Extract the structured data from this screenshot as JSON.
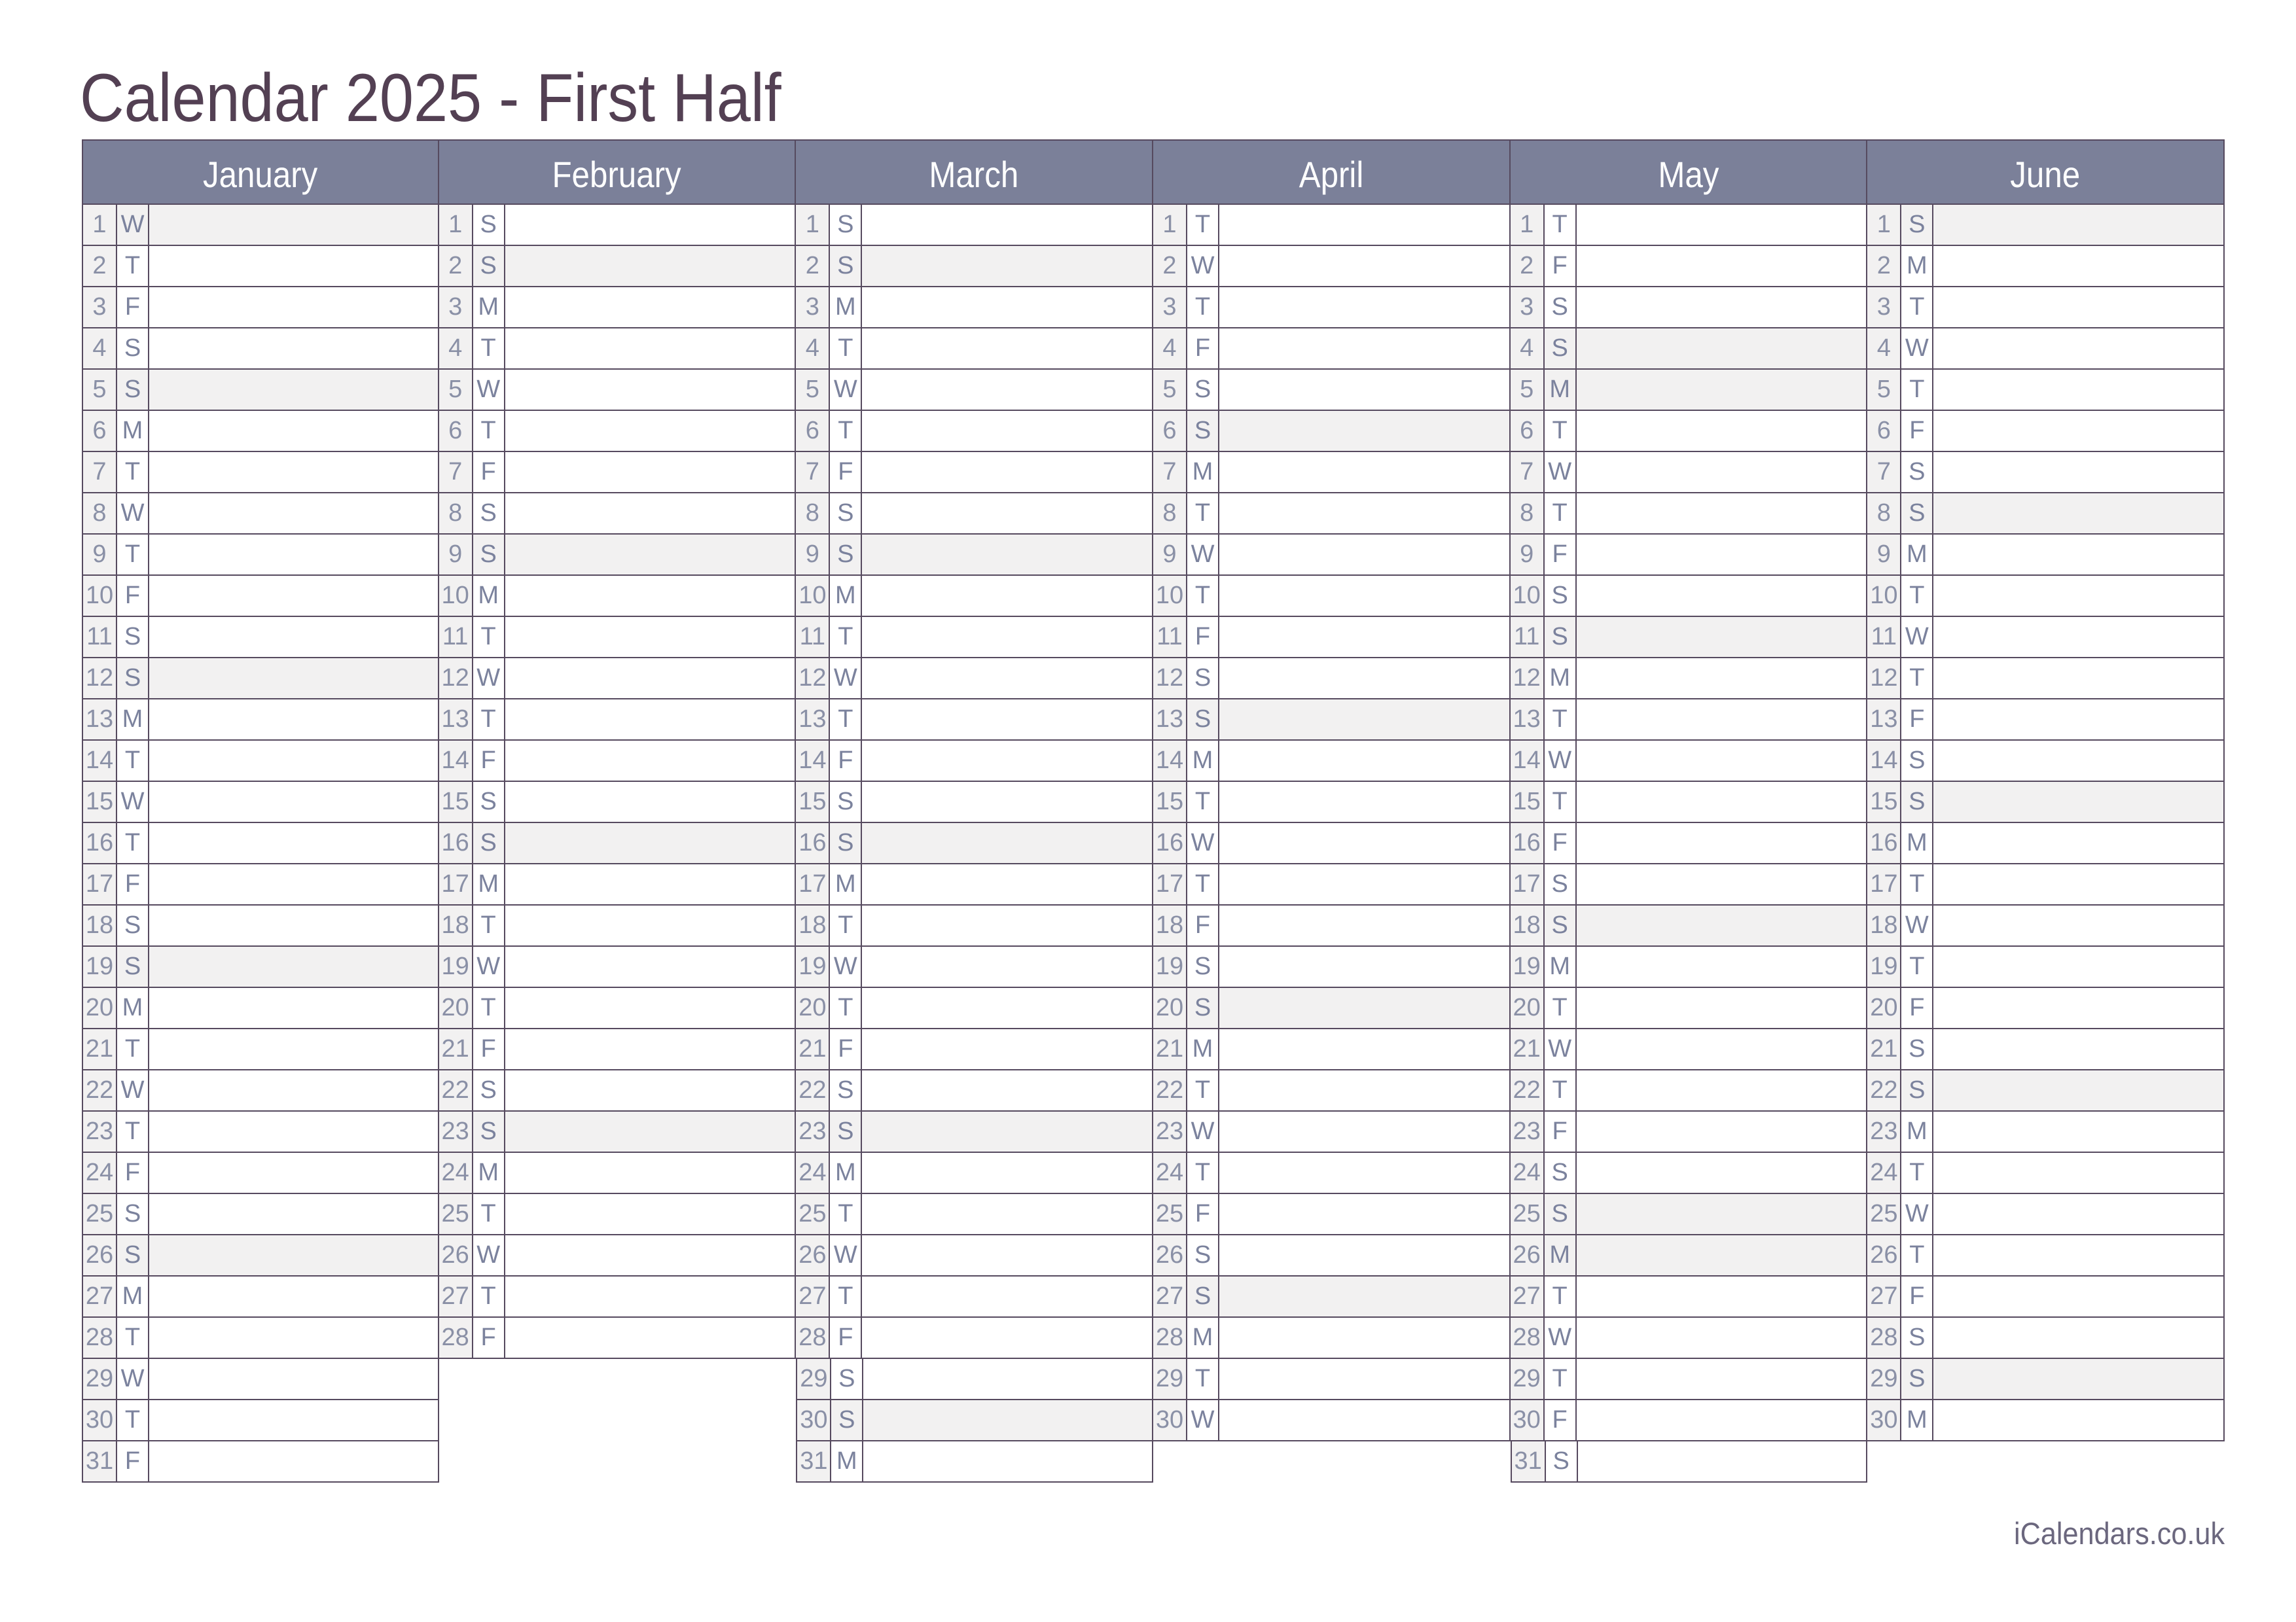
{
  "page": {
    "title": "Calendar 2025 - First Half",
    "footer": "iCalendars.co.uk"
  },
  "colors": {
    "title_text": "#534053",
    "header_bg": "#7b8099",
    "header_text": "#ffffff",
    "grid_line": "#564a5f",
    "cell_gray": "#f2f1f1",
    "number_text": "#8a90a6",
    "weekday_text": "#7b829d",
    "footer_text": "#6b677e"
  },
  "calendar": {
    "months": [
      {
        "label": "January",
        "days": [
          [
            1,
            "W",
            1
          ],
          [
            2,
            "T",
            0
          ],
          [
            3,
            "F",
            0
          ],
          [
            4,
            "S",
            0
          ],
          [
            5,
            "S",
            1
          ],
          [
            6,
            "M",
            0
          ],
          [
            7,
            "T",
            0
          ],
          [
            8,
            "W",
            0
          ],
          [
            9,
            "T",
            0
          ],
          [
            10,
            "F",
            0
          ],
          [
            11,
            "S",
            0
          ],
          [
            12,
            "S",
            1
          ],
          [
            13,
            "M",
            0
          ],
          [
            14,
            "T",
            0
          ],
          [
            15,
            "W",
            0
          ],
          [
            16,
            "T",
            0
          ],
          [
            17,
            "F",
            0
          ],
          [
            18,
            "S",
            0
          ],
          [
            19,
            "S",
            1
          ],
          [
            20,
            "M",
            0
          ],
          [
            21,
            "T",
            0
          ],
          [
            22,
            "W",
            0
          ],
          [
            23,
            "T",
            0
          ],
          [
            24,
            "F",
            0
          ],
          [
            25,
            "S",
            0
          ],
          [
            26,
            "S",
            1
          ],
          [
            27,
            "M",
            0
          ],
          [
            28,
            "T",
            0
          ],
          [
            29,
            "W",
            0
          ],
          [
            30,
            "T",
            0
          ],
          [
            31,
            "F",
            0
          ]
        ]
      },
      {
        "label": "February",
        "days": [
          [
            1,
            "S",
            0
          ],
          [
            2,
            "S",
            1
          ],
          [
            3,
            "M",
            0
          ],
          [
            4,
            "T",
            0
          ],
          [
            5,
            "W",
            0
          ],
          [
            6,
            "T",
            0
          ],
          [
            7,
            "F",
            0
          ],
          [
            8,
            "S",
            0
          ],
          [
            9,
            "S",
            1
          ],
          [
            10,
            "M",
            0
          ],
          [
            11,
            "T",
            0
          ],
          [
            12,
            "W",
            0
          ],
          [
            13,
            "T",
            0
          ],
          [
            14,
            "F",
            0
          ],
          [
            15,
            "S",
            0
          ],
          [
            16,
            "S",
            1
          ],
          [
            17,
            "M",
            0
          ],
          [
            18,
            "T",
            0
          ],
          [
            19,
            "W",
            0
          ],
          [
            20,
            "T",
            0
          ],
          [
            21,
            "F",
            0
          ],
          [
            22,
            "S",
            0
          ],
          [
            23,
            "S",
            1
          ],
          [
            24,
            "M",
            0
          ],
          [
            25,
            "T",
            0
          ],
          [
            26,
            "W",
            0
          ],
          [
            27,
            "T",
            0
          ],
          [
            28,
            "F",
            0
          ]
        ]
      },
      {
        "label": "March",
        "days": [
          [
            1,
            "S",
            0
          ],
          [
            2,
            "S",
            1
          ],
          [
            3,
            "M",
            0
          ],
          [
            4,
            "T",
            0
          ],
          [
            5,
            "W",
            0
          ],
          [
            6,
            "T",
            0
          ],
          [
            7,
            "F",
            0
          ],
          [
            8,
            "S",
            0
          ],
          [
            9,
            "S",
            1
          ],
          [
            10,
            "M",
            0
          ],
          [
            11,
            "T",
            0
          ],
          [
            12,
            "W",
            0
          ],
          [
            13,
            "T",
            0
          ],
          [
            14,
            "F",
            0
          ],
          [
            15,
            "S",
            0
          ],
          [
            16,
            "S",
            1
          ],
          [
            17,
            "M",
            0
          ],
          [
            18,
            "T",
            0
          ],
          [
            19,
            "W",
            0
          ],
          [
            20,
            "T",
            0
          ],
          [
            21,
            "F",
            0
          ],
          [
            22,
            "S",
            0
          ],
          [
            23,
            "S",
            1
          ],
          [
            24,
            "M",
            0
          ],
          [
            25,
            "T",
            0
          ],
          [
            26,
            "W",
            0
          ],
          [
            27,
            "T",
            0
          ],
          [
            28,
            "F",
            0
          ],
          [
            29,
            "S",
            0
          ],
          [
            30,
            "S",
            1
          ],
          [
            31,
            "M",
            0
          ]
        ]
      },
      {
        "label": "April",
        "days": [
          [
            1,
            "T",
            0
          ],
          [
            2,
            "W",
            0
          ],
          [
            3,
            "T",
            0
          ],
          [
            4,
            "F",
            0
          ],
          [
            5,
            "S",
            0
          ],
          [
            6,
            "S",
            1
          ],
          [
            7,
            "M",
            0
          ],
          [
            8,
            "T",
            0
          ],
          [
            9,
            "W",
            0
          ],
          [
            10,
            "T",
            0
          ],
          [
            11,
            "F",
            0
          ],
          [
            12,
            "S",
            0
          ],
          [
            13,
            "S",
            1
          ],
          [
            14,
            "M",
            0
          ],
          [
            15,
            "T",
            0
          ],
          [
            16,
            "W",
            0
          ],
          [
            17,
            "T",
            0
          ],
          [
            18,
            "F",
            0
          ],
          [
            19,
            "S",
            0
          ],
          [
            20,
            "S",
            1
          ],
          [
            21,
            "M",
            0
          ],
          [
            22,
            "T",
            0
          ],
          [
            23,
            "W",
            0
          ],
          [
            24,
            "T",
            0
          ],
          [
            25,
            "F",
            0
          ],
          [
            26,
            "S",
            0
          ],
          [
            27,
            "S",
            1
          ],
          [
            28,
            "M",
            0
          ],
          [
            29,
            "T",
            0
          ],
          [
            30,
            "W",
            0
          ]
        ]
      },
      {
        "label": "May",
        "days": [
          [
            1,
            "T",
            0
          ],
          [
            2,
            "F",
            0
          ],
          [
            3,
            "S",
            0
          ],
          [
            4,
            "S",
            1
          ],
          [
            5,
            "M",
            1
          ],
          [
            6,
            "T",
            0
          ],
          [
            7,
            "W",
            0
          ],
          [
            8,
            "T",
            0
          ],
          [
            9,
            "F",
            0
          ],
          [
            10,
            "S",
            0
          ],
          [
            11,
            "S",
            1
          ],
          [
            12,
            "M",
            0
          ],
          [
            13,
            "T",
            0
          ],
          [
            14,
            "W",
            0
          ],
          [
            15,
            "T",
            0
          ],
          [
            16,
            "F",
            0
          ],
          [
            17,
            "S",
            0
          ],
          [
            18,
            "S",
            1
          ],
          [
            19,
            "M",
            0
          ],
          [
            20,
            "T",
            0
          ],
          [
            21,
            "W",
            0
          ],
          [
            22,
            "T",
            0
          ],
          [
            23,
            "F",
            0
          ],
          [
            24,
            "S",
            0
          ],
          [
            25,
            "S",
            1
          ],
          [
            26,
            "M",
            1
          ],
          [
            27,
            "T",
            0
          ],
          [
            28,
            "W",
            0
          ],
          [
            29,
            "T",
            0
          ],
          [
            30,
            "F",
            0
          ],
          [
            31,
            "S",
            0
          ]
        ]
      },
      {
        "label": "June",
        "days": [
          [
            1,
            "S",
            1
          ],
          [
            2,
            "M",
            0
          ],
          [
            3,
            "T",
            0
          ],
          [
            4,
            "W",
            0
          ],
          [
            5,
            "T",
            0
          ],
          [
            6,
            "F",
            0
          ],
          [
            7,
            "S",
            0
          ],
          [
            8,
            "S",
            1
          ],
          [
            9,
            "M",
            0
          ],
          [
            10,
            "T",
            0
          ],
          [
            11,
            "W",
            0
          ],
          [
            12,
            "T",
            0
          ],
          [
            13,
            "F",
            0
          ],
          [
            14,
            "S",
            0
          ],
          [
            15,
            "S",
            1
          ],
          [
            16,
            "M",
            0
          ],
          [
            17,
            "T",
            0
          ],
          [
            18,
            "W",
            0
          ],
          [
            19,
            "T",
            0
          ],
          [
            20,
            "F",
            0
          ],
          [
            21,
            "S",
            0
          ],
          [
            22,
            "S",
            1
          ],
          [
            23,
            "M",
            0
          ],
          [
            24,
            "T",
            0
          ],
          [
            25,
            "W",
            0
          ],
          [
            26,
            "T",
            0
          ],
          [
            27,
            "F",
            0
          ],
          [
            28,
            "S",
            0
          ],
          [
            29,
            "S",
            1
          ],
          [
            30,
            "M",
            0
          ]
        ]
      }
    ]
  }
}
